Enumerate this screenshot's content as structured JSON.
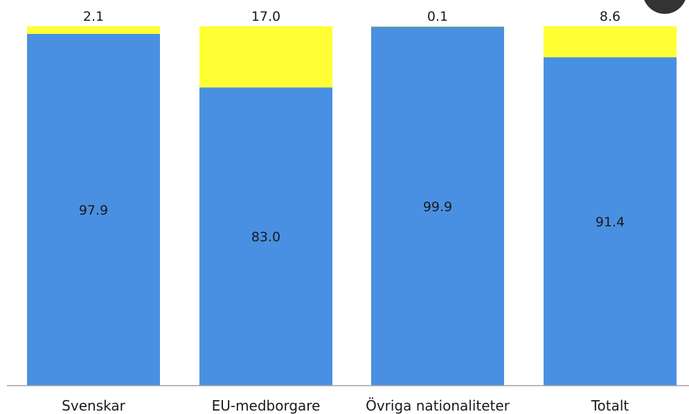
{
  "chart_data": {
    "type": "bar",
    "stacked": true,
    "percent_stacked": true,
    "categories": [
      "Svenskar",
      "EU-medborgare",
      "Övriga nationaliteter",
      "Totalt"
    ],
    "series": [
      {
        "values": [
          97.9,
          83.0,
          99.9,
          91.4
        ],
        "value_labels": [
          "97.9",
          "83.0",
          "99.9",
          "91.4"
        ],
        "color": "#4a90e2"
      },
      {
        "values": [
          2.1,
          17.0,
          0.1,
          8.6
        ],
        "value_labels": [
          "2.1",
          "17.0",
          "0.1",
          "8.6"
        ],
        "color": "#ffff33"
      }
    ],
    "ylim": [
      0,
      100
    ],
    "grid": false,
    "legend": "none",
    "xlabel": "",
    "ylabel": "",
    "title": ""
  },
  "colors": {
    "axis": "#a0a0a0",
    "corner_decoration": "#333333"
  }
}
